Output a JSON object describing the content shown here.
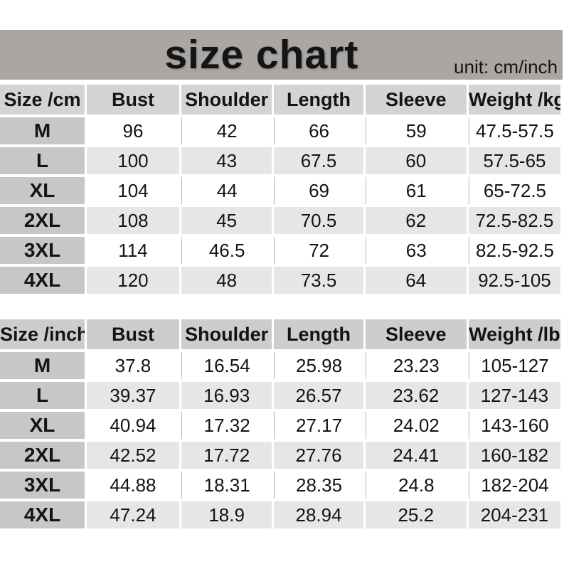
{
  "banner": {
    "title": "size chart",
    "unit_label": "unit: cm/inch"
  },
  "colors": {
    "page_bg": "#ffffff",
    "banner_bg": "#a9a6a3",
    "table1_header_bg": "#d6d4d2",
    "table2_header_bg": "#cfcdcb",
    "size_col_bg": "#c9c7c5",
    "row_bg": "#ffffff",
    "alt_row_bg": "#e7e6e5",
    "grid_line": "#b5b5b5",
    "text": "#141414"
  },
  "chart_data": [
    {
      "type": "table",
      "title": "size chart",
      "unit": "cm",
      "headers": [
        "Size /cm",
        "Bust",
        "Shoulder",
        "Length",
        "Sleeve",
        "Weight /kg"
      ],
      "rows": [
        [
          "M",
          "96",
          "42",
          "66",
          "59",
          "47.5-57.5"
        ],
        [
          "L",
          "100",
          "43",
          "67.5",
          "60",
          "57.5-65"
        ],
        [
          "XL",
          "104",
          "44",
          "69",
          "61",
          "65-72.5"
        ],
        [
          "2XL",
          "108",
          "45",
          "70.5",
          "62",
          "72.5-82.5"
        ],
        [
          "3XL",
          "114",
          "46.5",
          "72",
          "63",
          "82.5-92.5"
        ],
        [
          "4XL",
          "120",
          "48",
          "73.5",
          "64",
          "92.5-105"
        ]
      ]
    },
    {
      "type": "table",
      "title": "size chart",
      "unit": "inch",
      "headers": [
        "Size /inch",
        "Bust",
        "Shoulder",
        "Length",
        "Sleeve",
        "Weight /lb"
      ],
      "rows": [
        [
          "M",
          "37.8",
          "16.54",
          "25.98",
          "23.23",
          "105-127"
        ],
        [
          "L",
          "39.37",
          "16.93",
          "26.57",
          "23.62",
          "127-143"
        ],
        [
          "XL",
          "40.94",
          "17.32",
          "27.17",
          "24.02",
          "143-160"
        ],
        [
          "2XL",
          "42.52",
          "17.72",
          "27.76",
          "24.41",
          "160-182"
        ],
        [
          "3XL",
          "44.88",
          "18.31",
          "28.35",
          "24.8",
          "182-204"
        ],
        [
          "4XL",
          "47.24",
          "18.9",
          "28.94",
          "25.2",
          "204-231"
        ]
      ]
    }
  ]
}
